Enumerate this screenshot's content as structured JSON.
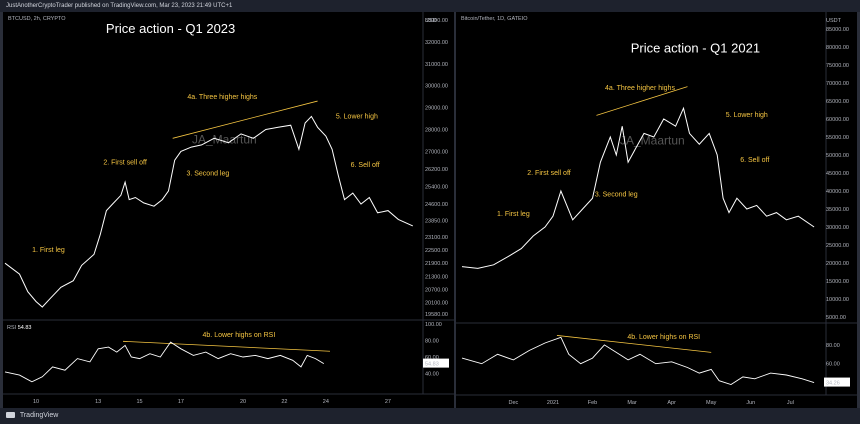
{
  "header": {
    "publisher_line": "JustAnotherCryptoTrader published on TradingView.com, Mar 23, 2023 21:49 UTC+1"
  },
  "footer": {
    "brand": "TradingView"
  },
  "colors": {
    "price_line": "#ffffff",
    "annotation": "#f5c542",
    "trendline": "#f5c542",
    "panel_bg": "#000000"
  },
  "chart_data": [
    {
      "type": "line",
      "symbol": "BTCUSD, 2h, CRYPTO",
      "title": "Price action - Q1 2023",
      "currency": "USD",
      "watermark": "JA_Maartun",
      "y_ticks": [
        "33000.00",
        "32000.00",
        "31000.00",
        "30000.00",
        "29000.00",
        "28000.00",
        "27000.00",
        "26200.00",
        "25400.00",
        "24600.00",
        "23850.00",
        "23100.00",
        "22500.00",
        "21900.00",
        "21300.00",
        "20700.00",
        "20100.00",
        "19580.00"
      ],
      "ylim": [
        19580,
        33000
      ],
      "x_ticks": [
        "10",
        "13",
        "15",
        "17",
        "20",
        "22",
        "24",
        "27"
      ],
      "x_tick_pos": [
        10,
        13,
        15,
        17,
        20,
        22,
        24,
        27
      ],
      "xlim": [
        8.5,
        28.5
      ],
      "series": [
        {
          "values": [
            [
              8.5,
              21900
            ],
            [
              9.2,
              21400
            ],
            [
              9.6,
              20600
            ],
            [
              10,
              20150
            ],
            [
              10.3,
              19900
            ],
            [
              10.7,
              20300
            ],
            [
              11.2,
              20800
            ],
            [
              11.8,
              21100
            ],
            [
              12.2,
              21800
            ],
            [
              12.8,
              22300
            ],
            [
              13.1,
              23200
            ],
            [
              13.4,
              24300
            ],
            [
              13.7,
              24600
            ],
            [
              14.1,
              25000
            ],
            [
              14.3,
              25600
            ],
            [
              14.5,
              24800
            ],
            [
              14.8,
              24900
            ],
            [
              15.2,
              24650
            ],
            [
              15.7,
              24500
            ],
            [
              16.1,
              24800
            ],
            [
              16.4,
              25200
            ],
            [
              16.7,
              26600
            ],
            [
              17,
              27000
            ],
            [
              17.5,
              27200
            ],
            [
              18,
              27300
            ],
            [
              18.6,
              27600
            ],
            [
              19.3,
              27400
            ],
            [
              19.9,
              27800
            ],
            [
              20.5,
              27600
            ],
            [
              21.1,
              28000
            ],
            [
              21.7,
              28100
            ],
            [
              22.3,
              28200
            ],
            [
              22.7,
              27100
            ],
            [
              23,
              28300
            ],
            [
              23.3,
              28600
            ],
            [
              23.6,
              28100
            ],
            [
              24,
              27700
            ],
            [
              24.3,
              27100
            ],
            [
              24.6,
              25900
            ],
            [
              24.9,
              24800
            ],
            [
              25.3,
              25100
            ],
            [
              25.7,
              24600
            ],
            [
              26.1,
              24900
            ],
            [
              26.5,
              24200
            ],
            [
              27,
              24300
            ],
            [
              27.5,
              23900
            ],
            [
              28.2,
              23600
            ]
          ]
        }
      ],
      "annotations": [
        {
          "text": "1. First leg",
          "x": 10.6,
          "y": 22400
        },
        {
          "text": "2. First sell off",
          "x": 14.3,
          "y": 26400
        },
        {
          "text": "3. Second leg",
          "x": 18.3,
          "y": 25900
        },
        {
          "text": "4a. Three higher highs",
          "x": 19.0,
          "y": 29400
        },
        {
          "text": "5. Lower high",
          "x": 25.5,
          "y": 28500
        },
        {
          "text": "6. Sell off",
          "x": 25.9,
          "y": 26300
        }
      ],
      "trendline": [
        [
          16.6,
          27600
        ],
        [
          23.6,
          29300
        ]
      ],
      "rsi": {
        "label": "RSI",
        "value": "54.83",
        "y_ticks": [
          "100.00",
          "80.00",
          "60.00",
          "40.00"
        ],
        "ylim": [
          20,
          100
        ],
        "values": [
          [
            8.5,
            42
          ],
          [
            9.2,
            38
          ],
          [
            9.8,
            30
          ],
          [
            10.3,
            36
          ],
          [
            10.8,
            48
          ],
          [
            11.4,
            44
          ],
          [
            12,
            58
          ],
          [
            12.6,
            54
          ],
          [
            13,
            70
          ],
          [
            13.5,
            72
          ],
          [
            13.9,
            66
          ],
          [
            14.3,
            74
          ],
          [
            14.6,
            60
          ],
          [
            15,
            58
          ],
          [
            15.5,
            64
          ],
          [
            16,
            60
          ],
          [
            16.5,
            78
          ],
          [
            17,
            70
          ],
          [
            17.6,
            62
          ],
          [
            18.2,
            66
          ],
          [
            18.8,
            58
          ],
          [
            19.4,
            64
          ],
          [
            20,
            60
          ],
          [
            20.6,
            62
          ],
          [
            21.2,
            58
          ],
          [
            21.8,
            62
          ],
          [
            22.4,
            56
          ],
          [
            22.8,
            48
          ],
          [
            23.1,
            62
          ],
          [
            23.5,
            58
          ],
          [
            23.9,
            52
          ]
        ],
        "trendline": [
          [
            14.2,
            79
          ],
          [
            24.2,
            67
          ]
        ],
        "annotation": {
          "text": "4b. Lower highs on RSI",
          "x": 19.8,
          "y": 84
        }
      }
    },
    {
      "type": "line",
      "symbol": "Bitcoin/Tether, 1D, GATEIO",
      "title": "Price action - Q1 2021",
      "currency": "USDT",
      "watermark": "JA_Maartun",
      "y_ticks": [
        "85000.00",
        "80000.00",
        "75000.00",
        "70000.00",
        "65000.00",
        "60000.00",
        "55000.00",
        "50000.00",
        "45000.00",
        "40000.00",
        "35000.00",
        "30000.00",
        "25000.00",
        "20000.00",
        "15000.00",
        "10000.00",
        "5000.00"
      ],
      "ylim": [
        5000,
        87500
      ],
      "x_ticks": [
        "Dec",
        "2021",
        "Feb",
        "Mar",
        "Apr",
        "May",
        "Jun",
        "Jul"
      ],
      "x_tick_pos": [
        1,
        2,
        3,
        4,
        5,
        6,
        7,
        8
      ],
      "xlim": [
        -0.4,
        8.8
      ],
      "series": [
        {
          "values": [
            [
              -0.3,
              19000
            ],
            [
              0.1,
              18500
            ],
            [
              0.5,
              19500
            ],
            [
              0.9,
              22000
            ],
            [
              1.2,
              24000
            ],
            [
              1.5,
              27500
            ],
            [
              1.8,
              30000
            ],
            [
              2,
              33000
            ],
            [
              2.2,
              40000
            ],
            [
              2.35,
              36000
            ],
            [
              2.5,
              32000
            ],
            [
              2.75,
              35000
            ],
            [
              3,
              38000
            ],
            [
              3.2,
              48000
            ],
            [
              3.45,
              55000
            ],
            [
              3.6,
              50000
            ],
            [
              3.75,
              58000
            ],
            [
              3.9,
              48000
            ],
            [
              4.1,
              52000
            ],
            [
              4.3,
              56000
            ],
            [
              4.55,
              55000
            ],
            [
              4.8,
              60000
            ],
            [
              5.1,
              58000
            ],
            [
              5.3,
              63000
            ],
            [
              5.45,
              56000
            ],
            [
              5.7,
              53000
            ],
            [
              5.95,
              56000
            ],
            [
              6.15,
              50000
            ],
            [
              6.3,
              38000
            ],
            [
              6.45,
              34000
            ],
            [
              6.65,
              38000
            ],
            [
              6.9,
              35000
            ],
            [
              7.15,
              36000
            ],
            [
              7.4,
              33000
            ],
            [
              7.65,
              34000
            ],
            [
              7.9,
              32000
            ],
            [
              8.2,
              33000
            ],
            [
              8.6,
              30000
            ]
          ]
        }
      ],
      "annotations": [
        {
          "text": "1. First leg",
          "x": 1.0,
          "y": 33000
        },
        {
          "text": "2. First sell off",
          "x": 1.9,
          "y": 44500
        },
        {
          "text": "3. Second leg",
          "x": 3.6,
          "y": 38500
        },
        {
          "text": "4a. Three higher highs",
          "x": 4.2,
          "y": 68000
        },
        {
          "text": "5. Lower high",
          "x": 6.9,
          "y": 60500
        },
        {
          "text": "6. Sell off",
          "x": 7.1,
          "y": 48000
        }
      ],
      "trendline": [
        [
          3.1,
          61000
        ],
        [
          5.4,
          69000
        ]
      ],
      "rsi": {
        "label": "",
        "value": "34.26",
        "y_ticks": [
          "80.00",
          "60.00",
          "40.00"
        ],
        "ylim": [
          30,
          100
        ],
        "values": [
          [
            -0.3,
            66
          ],
          [
            0.2,
            60
          ],
          [
            0.6,
            70
          ],
          [
            1.0,
            64
          ],
          [
            1.4,
            74
          ],
          [
            1.8,
            82
          ],
          [
            2.2,
            88
          ],
          [
            2.4,
            70
          ],
          [
            2.7,
            60
          ],
          [
            3.0,
            66
          ],
          [
            3.3,
            80
          ],
          [
            3.6,
            72
          ],
          [
            3.9,
            64
          ],
          [
            4.2,
            70
          ],
          [
            4.6,
            60
          ],
          [
            5.0,
            62
          ],
          [
            5.4,
            56
          ],
          [
            5.7,
            50
          ],
          [
            6.0,
            54
          ],
          [
            6.2,
            42
          ],
          [
            6.5,
            38
          ],
          [
            6.8,
            46
          ],
          [
            7.1,
            44
          ],
          [
            7.5,
            50
          ],
          [
            7.9,
            48
          ],
          [
            8.3,
            44
          ],
          [
            8.6,
            40
          ]
        ],
        "trendline": [
          [
            2.1,
            90
          ],
          [
            6.0,
            72
          ]
        ],
        "annotation": {
          "text": "4b. Lower highs on RSI",
          "x": 4.8,
          "y": 86
        }
      }
    }
  ]
}
